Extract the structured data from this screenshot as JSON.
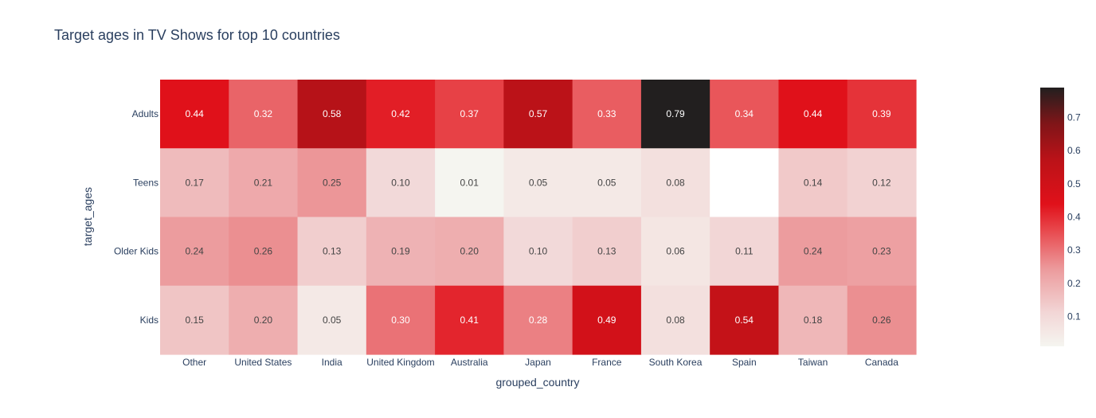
{
  "chart_data": {
    "type": "heatmap",
    "title": "Target ages in TV Shows for top 10 countries",
    "xlabel": "grouped_country",
    "ylabel": "target_ages",
    "x": [
      "Other",
      "United States",
      "India",
      "United Kingdom",
      "Australia",
      "Japan",
      "France",
      "South Korea",
      "Spain",
      "Taiwan",
      "Canada"
    ],
    "y": [
      "Adults",
      "Teens",
      "Older Kids",
      "Kids"
    ],
    "z": [
      [
        0.44,
        0.32,
        0.58,
        0.42,
        0.37,
        0.57,
        0.33,
        0.79,
        0.34,
        0.44,
        0.39
      ],
      [
        0.17,
        0.21,
        0.25,
        0.1,
        0.01,
        0.05,
        0.05,
        0.08,
        null,
        0.14,
        0.12
      ],
      [
        0.24,
        0.26,
        0.13,
        0.19,
        0.2,
        0.1,
        0.13,
        0.06,
        0.11,
        0.24,
        0.23
      ],
      [
        0.15,
        0.2,
        0.05,
        0.3,
        0.41,
        0.28,
        0.49,
        0.08,
        0.54,
        0.18,
        0.26
      ]
    ],
    "text": [
      [
        "0.44",
        "0.32",
        "0.58",
        "0.42",
        "0.37",
        "0.57",
        "0.33",
        "0.79",
        "0.34",
        "0.44",
        "0.39"
      ],
      [
        "0.17",
        "0.21",
        "0.25",
        "0.10",
        "0.01",
        "0.05",
        "0.05",
        "0.08",
        "",
        "0.14",
        "0.12"
      ],
      [
        "0.24",
        "0.26",
        "0.13",
        "0.19",
        "0.20",
        "0.10",
        "0.13",
        "0.06",
        "0.11",
        "0.24",
        "0.23"
      ],
      [
        "0.15",
        "0.20",
        "0.05",
        "0.30",
        "0.41",
        "0.28",
        "0.49",
        "0.08",
        "0.54",
        "0.18",
        "0.26"
      ]
    ],
    "zmin": 0.01,
    "zmax": 0.79,
    "colorscale": [
      [
        0.0,
        "#f5f5f0"
      ],
      [
        0.13,
        "#f2d6d6"
      ],
      [
        0.3,
        "#ec9a9c"
      ],
      [
        0.45,
        "#e8474c"
      ],
      [
        0.55,
        "#e0111a"
      ],
      [
        0.72,
        "#bb1218"
      ],
      [
        0.86,
        "#801518"
      ],
      [
        1.0,
        "#221f1f"
      ]
    ],
    "colorbar_ticks": [
      "0.1",
      "0.2",
      "0.3",
      "0.4",
      "0.5",
      "0.6",
      "0.7"
    ],
    "colorbar_tick_values": [
      0.1,
      0.2,
      0.3,
      0.4,
      0.5,
      0.6,
      0.7
    ],
    "text_color_dark": "#444444",
    "text_color_light": "#ffffff",
    "missing_color": "#ffffff"
  }
}
